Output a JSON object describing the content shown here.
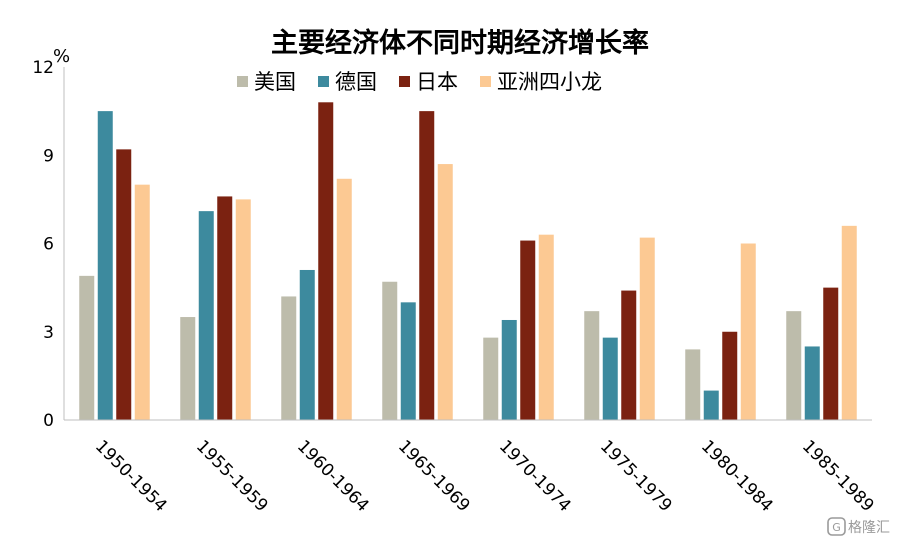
{
  "chart_data": {
    "type": "bar",
    "title": "主要经济体不同时期经济增长率",
    "ylabel": "%",
    "xlabel": "",
    "ylim": [
      0,
      12
    ],
    "yticks": [
      0,
      3,
      6,
      9,
      12
    ],
    "grid": false,
    "legend_position": "top",
    "categories": [
      "1950-1954",
      "1955-1959",
      "1960-1964",
      "1965-1969",
      "1970-1974",
      "1975-1979",
      "1980-1984",
      "1985-1989"
    ],
    "series": [
      {
        "name": "美国",
        "color": "#bdbcab",
        "values": [
          4.9,
          3.5,
          4.2,
          4.7,
          2.8,
          3.7,
          2.4,
          3.7
        ]
      },
      {
        "name": "德国",
        "color": "#3d8a9e",
        "values": [
          10.5,
          7.1,
          5.1,
          4.0,
          3.4,
          2.8,
          1.0,
          2.5
        ]
      },
      {
        "name": "日本",
        "color": "#7b2211",
        "values": [
          9.2,
          7.6,
          10.8,
          10.5,
          6.1,
          4.4,
          3.0,
          4.5
        ]
      },
      {
        "name": "亚洲四小龙",
        "color": "#fcc993",
        "values": [
          8.0,
          7.5,
          8.2,
          8.7,
          6.3,
          6.2,
          6.0,
          6.6
        ]
      }
    ]
  },
  "watermark": {
    "text": "格隆汇",
    "icon": "glh-logo-icon"
  }
}
